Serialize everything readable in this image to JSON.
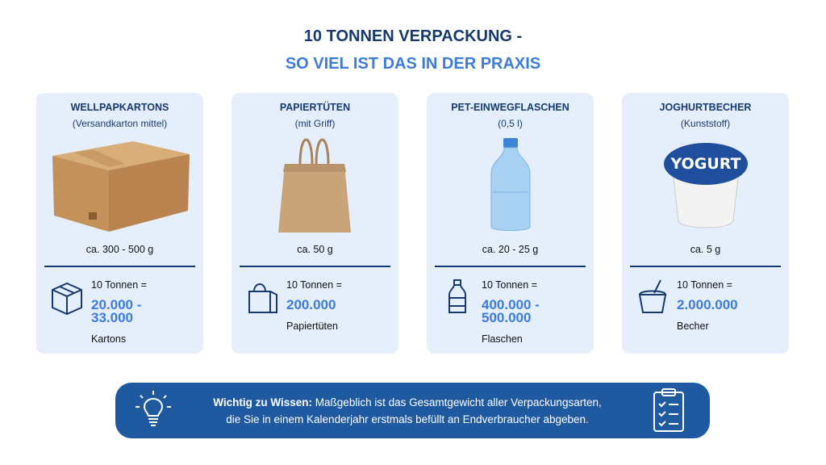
{
  "header": {
    "title": "10 TONNEN VERPACKUNG -",
    "subtitle": "SO VIEL IST DAS IN DER PRAXIS"
  },
  "cards": [
    {
      "title": "WELLPAPKARTONS",
      "subtitle": "(Versandkarton mittel)",
      "weight": "ca. 300 - 500 g",
      "equals": "10 Tonnen =",
      "amount": "20.000 - 33.000",
      "unit": "Kartons"
    },
    {
      "title": "PAPIERTÜTEN",
      "subtitle": "(mit Griff)",
      "weight": "ca. 50 g",
      "equals": "10 Tonnen =",
      "amount": "200.000",
      "unit": "Papiertüten"
    },
    {
      "title": "PET-EINWEGFLASCHEN",
      "subtitle": "(0,5 l)",
      "weight": "ca. 20 - 25 g",
      "equals": "10 Tonnen =",
      "amount": "400.000 - 500.000",
      "unit": "Flaschen"
    },
    {
      "title": "JOGHURTBECHER",
      "subtitle": "(Kunststoff)",
      "weight": "ca. 5 g",
      "equals": "10 Tonnen =",
      "amount": "2.000.000",
      "unit": "Becher",
      "image_label": "YOGURT"
    }
  ],
  "notice": {
    "lead": "Wichtig zu Wissen:",
    "line1": "Maßgeblich ist das Gesamtgewicht aller Verpackungsarten,",
    "line2": "die Sie in einem Kalenderjahr erstmals befüllt an Endverbraucher abgeben."
  }
}
